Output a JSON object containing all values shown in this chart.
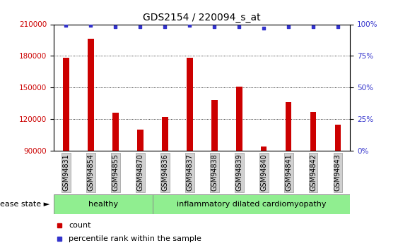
{
  "title": "GDS2154 / 220094_s_at",
  "samples": [
    "GSM94831",
    "GSM94854",
    "GSM94855",
    "GSM94870",
    "GSM94836",
    "GSM94837",
    "GSM94838",
    "GSM94839",
    "GSM94840",
    "GSM94841",
    "GSM94842",
    "GSM94843"
  ],
  "counts": [
    178000,
    196000,
    126000,
    110000,
    122000,
    178000,
    138000,
    151000,
    94000,
    136000,
    127000,
    115000
  ],
  "percentile_ranks": [
    99,
    99,
    98,
    98,
    98,
    99,
    98,
    98,
    97,
    98,
    98,
    98
  ],
  "bar_color": "#cc0000",
  "dot_color": "#3333cc",
  "ylim_left": [
    90000,
    210000
  ],
  "ylim_right": [
    0,
    100
  ],
  "yticks_left": [
    90000,
    120000,
    150000,
    180000,
    210000
  ],
  "yticks_right": [
    0,
    25,
    50,
    75,
    100
  ],
  "disease_groups": [
    {
      "label": "healthy",
      "start": 0,
      "end": 4,
      "color": "#90ee90"
    },
    {
      "label": "inflammatory dilated cardiomyopathy",
      "start": 4,
      "end": 12,
      "color": "#90ee90"
    }
  ],
  "legend_items": [
    {
      "label": "count",
      "color": "#cc0000"
    },
    {
      "label": "percentile rank within the sample",
      "color": "#3333cc"
    }
  ],
  "disease_state_label": "disease state",
  "title_fontsize": 10,
  "tick_fontsize": 7.5,
  "bar_width": 0.25
}
